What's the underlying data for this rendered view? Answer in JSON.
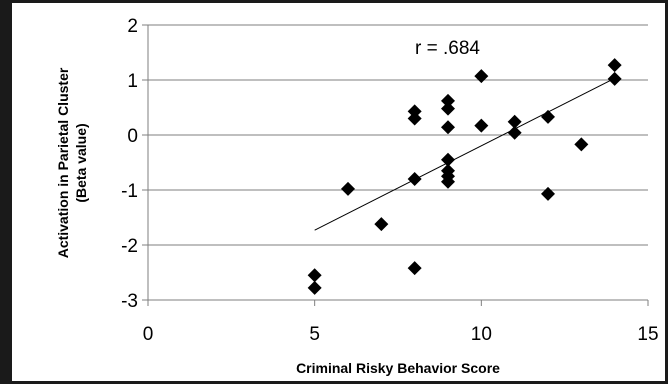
{
  "chart_data": {
    "type": "scatter",
    "xlabel": "Criminal Risky Behavior Score",
    "ylabel": "Activation in Parietal Cluster",
    "ylabel_line2": "(Beta value)",
    "xlim": [
      0,
      15
    ],
    "ylim": [
      -3,
      2
    ],
    "xticks": [
      0,
      5,
      10,
      15
    ],
    "yticks": [
      -3,
      -2,
      -1,
      0,
      1,
      2
    ],
    "grid": "horizontal",
    "annotation": "r = .684",
    "marker": "diamond",
    "marker_color": "#000000",
    "points": [
      {
        "x": 5,
        "y": -2.55
      },
      {
        "x": 5,
        "y": -2.78
      },
      {
        "x": 6,
        "y": -0.98
      },
      {
        "x": 7,
        "y": -1.62
      },
      {
        "x": 8,
        "y": 0.43
      },
      {
        "x": 8,
        "y": 0.3
      },
      {
        "x": 8,
        "y": -0.8
      },
      {
        "x": 8,
        "y": -2.42
      },
      {
        "x": 9,
        "y": 0.62
      },
      {
        "x": 9,
        "y": 0.48
      },
      {
        "x": 9,
        "y": 0.14
      },
      {
        "x": 9,
        "y": -0.45
      },
      {
        "x": 9,
        "y": -0.65
      },
      {
        "x": 9,
        "y": -0.75
      },
      {
        "x": 9,
        "y": -0.85
      },
      {
        "x": 10,
        "y": 1.07
      },
      {
        "x": 10,
        "y": 0.17
      },
      {
        "x": 11,
        "y": 0.24
      },
      {
        "x": 11,
        "y": 0.04
      },
      {
        "x": 12,
        "y": 0.33
      },
      {
        "x": 12,
        "y": -1.07
      },
      {
        "x": 13,
        "y": -0.17
      },
      {
        "x": 14,
        "y": 1.27
      },
      {
        "x": 14,
        "y": 1.02
      }
    ],
    "trendline": {
      "x": [
        5,
        14
      ],
      "y": [
        -1.73,
        1.03
      ]
    }
  }
}
